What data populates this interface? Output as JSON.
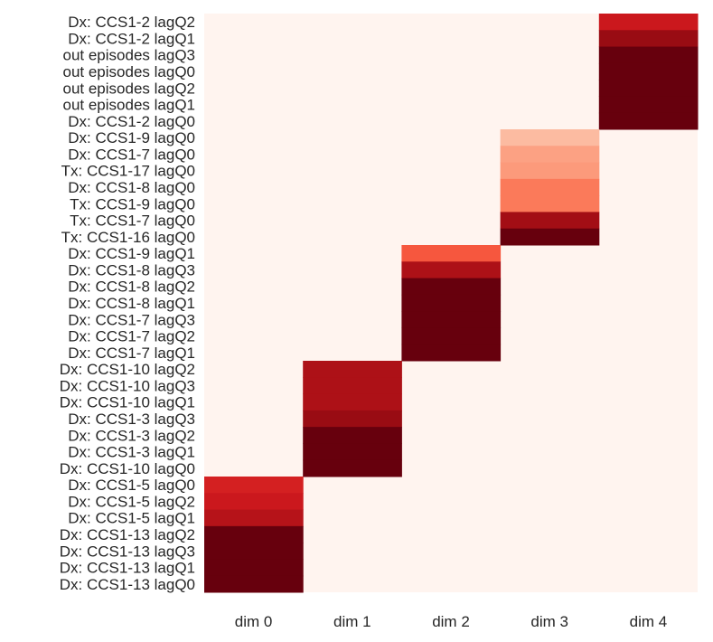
{
  "chart_data": {
    "type": "heatmap",
    "colormap": "Reds",
    "background_color": "#fff4ef",
    "x_categories": [
      "dim 0",
      "dim 1",
      "dim 2",
      "dim 3",
      "dim 4"
    ],
    "rows": [
      {
        "label": "Dx: CCS1-2 lagQ2",
        "dim": 4,
        "value": 0.75
      },
      {
        "label": "Dx: CCS1-2 lagQ1",
        "dim": 4,
        "value": 0.9
      },
      {
        "label": "out episodes lagQ3",
        "dim": 4,
        "value": 1.0
      },
      {
        "label": "out episodes lagQ0",
        "dim": 4,
        "value": 1.0
      },
      {
        "label": "out episodes lagQ2",
        "dim": 4,
        "value": 1.0
      },
      {
        "label": "out episodes lagQ1",
        "dim": 4,
        "value": 1.0
      },
      {
        "label": "Dx: CCS1-2 lagQ0",
        "dim": 4,
        "value": 1.0
      },
      {
        "label": "Dx: CCS1-9 lagQ0",
        "dim": 3,
        "value": 0.25
      },
      {
        "label": "Dx: CCS1-7 lagQ0",
        "dim": 3,
        "value": 0.33
      },
      {
        "label": "Tx: CCS1-17 lagQ0",
        "dim": 3,
        "value": 0.35
      },
      {
        "label": "Dx: CCS1-8 lagQ0",
        "dim": 3,
        "value": 0.45
      },
      {
        "label": "Tx: CCS1-9 lagQ0",
        "dim": 3,
        "value": 0.45
      },
      {
        "label": "Tx: CCS1-7 lagQ0",
        "dim": 3,
        "value": 0.88
      },
      {
        "label": "Tx: CCS1-16 lagQ0",
        "dim": 3,
        "value": 1.0
      },
      {
        "label": "Dx: CCS1-9 lagQ1",
        "dim": 2,
        "value": 0.55
      },
      {
        "label": "Dx: CCS1-8 lagQ3",
        "dim": 2,
        "value": 0.85
      },
      {
        "label": "Dx: CCS1-8 lagQ2",
        "dim": 2,
        "value": 1.0
      },
      {
        "label": "Dx: CCS1-8 lagQ1",
        "dim": 2,
        "value": 1.0
      },
      {
        "label": "Dx: CCS1-7 lagQ3",
        "dim": 2,
        "value": 1.0
      },
      {
        "label": "Dx: CCS1-7 lagQ2",
        "dim": 2,
        "value": 1.0
      },
      {
        "label": "Dx: CCS1-7 lagQ1",
        "dim": 2,
        "value": 1.0
      },
      {
        "label": "Dx: CCS1-10 lagQ2",
        "dim": 1,
        "value": 0.85
      },
      {
        "label": "Dx: CCS1-10 lagQ3",
        "dim": 1,
        "value": 0.85
      },
      {
        "label": "Dx: CCS1-10 lagQ1",
        "dim": 1,
        "value": 0.85
      },
      {
        "label": "Dx: CCS1-3 lagQ3",
        "dim": 1,
        "value": 0.9
      },
      {
        "label": "Dx: CCS1-3 lagQ2",
        "dim": 1,
        "value": 1.0
      },
      {
        "label": "Dx: CCS1-3 lagQ1",
        "dim": 1,
        "value": 1.0
      },
      {
        "label": "Dx: CCS1-10 lagQ0",
        "dim": 1,
        "value": 1.0
      },
      {
        "label": "Dx: CCS1-5 lagQ0",
        "dim": 0,
        "value": 0.72
      },
      {
        "label": "Dx: CCS1-5 lagQ2",
        "dim": 0,
        "value": 0.75
      },
      {
        "label": "Dx: CCS1-5 lagQ1",
        "dim": 0,
        "value": 0.82
      },
      {
        "label": "Dx: CCS1-13 lagQ2",
        "dim": 0,
        "value": 1.0
      },
      {
        "label": "Dx: CCS1-13 lagQ3",
        "dim": 0,
        "value": 1.0
      },
      {
        "label": "Dx: CCS1-13 lagQ1",
        "dim": 0,
        "value": 1.0
      },
      {
        "label": "Dx: CCS1-13 lagQ0",
        "dim": 0,
        "value": 1.0
      }
    ],
    "title": "",
    "xlabel": "",
    "ylabel": "",
    "grid": false,
    "legend": "none"
  }
}
